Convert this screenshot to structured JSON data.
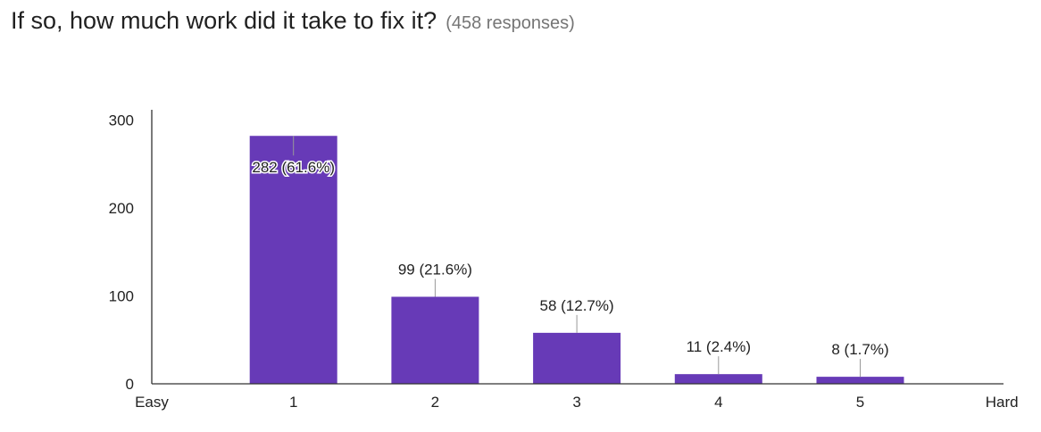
{
  "question": "If so, how much work did it take to fix it?",
  "responses": "(458 responses)",
  "chart_data": {
    "type": "bar",
    "categories": [
      "1",
      "2",
      "3",
      "4",
      "5"
    ],
    "axis_end_labels": {
      "left": "Easy",
      "right": "Hard"
    },
    "values": [
      282,
      99,
      58,
      11,
      8
    ],
    "data_labels": [
      "282 (61.6%)",
      "99 (21.6%)",
      "58 (12.7%)",
      "11 (2.4%)",
      "8 (1.7%)"
    ],
    "yticks": [
      "0",
      "100",
      "200",
      "300"
    ],
    "ylim": [
      0,
      300
    ],
    "grid": false,
    "bar_color": "#673ab7"
  }
}
